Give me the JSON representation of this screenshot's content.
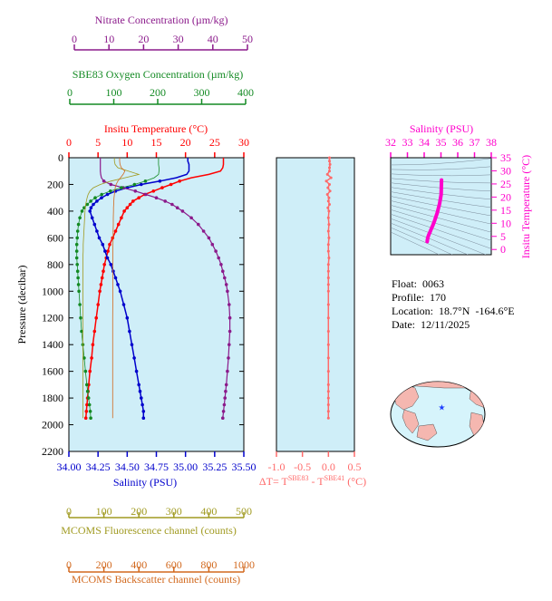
{
  "colors": {
    "nitrate": "#8b1a8b",
    "oxygen": "#138a23",
    "temperature": "#ff0000",
    "salinity": "#0000cc",
    "fluorescence": "#a09a20",
    "backscatter": "#d2691e",
    "delta": "#ff6a6a",
    "ts": "#ff00cc",
    "panel_bg": "#cfeef8"
  },
  "axes": {
    "nitrate_label": "Nitrate Concentration (µm/kg)",
    "nitrate_ticks": [
      "0",
      "10",
      "20",
      "30",
      "40",
      "50"
    ],
    "oxygen_label": "SBE83 Oxygen Concentration (µm/kg)",
    "oxygen_ticks": [
      "0",
      "100",
      "200",
      "300",
      "400"
    ],
    "temperature_label": "Insitu Temperature (°C)",
    "temperature_ticks": [
      "0",
      "5",
      "10",
      "15",
      "20",
      "25",
      "30"
    ],
    "pressure_label": "Pressure (decibar)",
    "pressure_ticks": [
      "0",
      "200",
      "400",
      "600",
      "800",
      "1000",
      "1200",
      "1400",
      "1600",
      "1800",
      "2000",
      "2200"
    ],
    "salinity_label": "Salinity (PSU)",
    "salinity_ticks": [
      "34.00",
      "34.25",
      "34.50",
      "34.75",
      "35.00",
      "35.25",
      "35.50"
    ],
    "fluorescence_label": "MCOMS Fluorescence channel (counts)",
    "fluorescence_ticks": [
      "0",
      "100",
      "200",
      "300",
      "400",
      "500"
    ],
    "backscatter_label": "MCOMS Backscatter channel (counts)",
    "backscatter_ticks": [
      "0",
      "200",
      "400",
      "600",
      "800",
      "1000"
    ],
    "delta_label_pre": "ΔT= T",
    "delta_sup1": "SBE83",
    "delta_mid": " - T",
    "delta_sup2": "SBE41",
    "delta_unit": " (°C)",
    "delta_ticks": [
      "-1.0",
      "-0.5",
      "0.0",
      "0.5"
    ],
    "ts_top_label": "Salinity (PSU)",
    "ts_top_ticks": [
      "32",
      "33",
      "34",
      "35",
      "36",
      "37",
      "38"
    ],
    "ts_right_label": "Insitu Temperature (°C)",
    "ts_right_ticks": [
      "0",
      "5",
      "10",
      "15",
      "20",
      "25",
      "30",
      "35"
    ]
  },
  "info": {
    "float": "Float:  0063",
    "profile": "Profile:  170",
    "location": "Location:  18.7°N  -164.6°E",
    "date": "Date:  12/11/2025"
  },
  "chart_data": {
    "type": "line",
    "ylabel": "Pressure (decibar)",
    "ylim": [
      0,
      2200
    ],
    "pressure": [
      0,
      25,
      50,
      75,
      100,
      125,
      150,
      175,
      200,
      225,
      250,
      275,
      300,
      325,
      350,
      375,
      400,
      450,
      500,
      550,
      600,
      650,
      700,
      750,
      800,
      850,
      900,
      950,
      1000,
      1100,
      1200,
      1300,
      1400,
      1500,
      1600,
      1700,
      1750,
      1800,
      1850,
      1900,
      1950
    ],
    "series": [
      {
        "name": "Insitu Temperature",
        "xlim": [
          0,
          30
        ],
        "values": [
          26.5,
          26.5,
          26.5,
          26.4,
          26.0,
          24.0,
          21.0,
          19.0,
          17.5,
          16.0,
          14.5,
          13.0,
          12.0,
          11.0,
          10.5,
          10.0,
          9.5,
          9.0,
          8.5,
          8.0,
          7.5,
          7.0,
          6.7,
          6.4,
          6.1,
          5.9,
          5.7,
          5.5,
          5.3,
          5.0,
          4.7,
          4.4,
          4.1,
          3.9,
          3.6,
          3.4,
          3.3,
          3.2,
          3.1,
          3.0,
          2.9
        ]
      },
      {
        "name": "Salinity",
        "xlim": [
          34.0,
          35.5
        ],
        "values": [
          35.02,
          35.02,
          35.03,
          35.03,
          35.03,
          35.01,
          34.92,
          34.78,
          34.62,
          34.5,
          34.4,
          34.33,
          34.28,
          34.24,
          34.21,
          34.19,
          34.18,
          34.2,
          34.22,
          34.24,
          34.26,
          34.29,
          34.31,
          34.33,
          34.36,
          34.38,
          34.4,
          34.42,
          34.44,
          34.47,
          34.5,
          34.52,
          34.54,
          34.56,
          34.58,
          34.6,
          34.61,
          34.62,
          34.63,
          34.64,
          34.64
        ]
      },
      {
        "name": "Nitrate",
        "xlim": [
          0,
          50
        ],
        "values": [
          9.0,
          9.0,
          9.0,
          9.0,
          9.0,
          9.1,
          9.3,
          10.0,
          12.0,
          15.5,
          19.0,
          22.0,
          25.0,
          27.5,
          29.5,
          31.0,
          32.5,
          35.0,
          37.0,
          38.5,
          40.0,
          41.0,
          42.0,
          42.8,
          43.5,
          44.0,
          44.5,
          45.0,
          45.3,
          45.8,
          46.0,
          46.0,
          45.8,
          45.6,
          45.3,
          45.0,
          44.8,
          44.6,
          44.4,
          44.2,
          44.0
        ]
      },
      {
        "name": "Oxygen",
        "xlim": [
          0,
          400
        ],
        "values": [
          205,
          205,
          205,
          206,
          206,
          205,
          195,
          175,
          150,
          120,
          95,
          75,
          60,
          50,
          42,
          35,
          30,
          25,
          22,
          20,
          19,
          18,
          18,
          18,
          19,
          20,
          21,
          22,
          23,
          25,
          27,
          29,
          32,
          35,
          38,
          41,
          43,
          45,
          47,
          49,
          50
        ]
      },
      {
        "name": "Fluorescence",
        "xlim": [
          0,
          500
        ],
        "values": [
          130,
          130,
          132,
          140,
          170,
          200,
          160,
          120,
          90,
          70,
          60,
          55,
          52,
          50,
          48,
          47,
          46,
          45,
          44,
          43,
          42,
          41,
          41,
          40,
          40,
          40,
          40,
          40,
          40,
          40,
          40,
          40,
          40,
          40,
          40,
          40,
          40,
          40,
          40,
          40,
          40
        ]
      },
      {
        "name": "Backscatter",
        "xlim": [
          0,
          1000
        ],
        "values": [
          290,
          290,
          292,
          300,
          320,
          310,
          295,
          280,
          270,
          265,
          262,
          260,
          258,
          257,
          256,
          255,
          255,
          254,
          254,
          253,
          253,
          252,
          252,
          252,
          252,
          252,
          251,
          251,
          251,
          251,
          250,
          250,
          250,
          250,
          250,
          250,
          250,
          250,
          250,
          250,
          250
        ]
      },
      {
        "name": "Delta T",
        "xlim": [
          -1.0,
          0.5
        ],
        "values": [
          0.02,
          0.02,
          0.03,
          0.02,
          0.02,
          -0.02,
          0.05,
          -0.04,
          0.02,
          -0.01,
          0.03,
          -0.02,
          0.01,
          0.0,
          0.02,
          -0.01,
          0.01,
          0.0,
          0.01,
          0.0,
          0.01,
          0.0,
          0.0,
          0.01,
          0.0,
          0.0,
          0.0,
          0.0,
          0.0,
          0.0,
          0.0,
          0.0,
          0.0,
          0.0,
          0.0,
          0.0,
          0.0,
          0.0,
          0.0,
          0.0,
          0.0
        ]
      }
    ],
    "ts_diagram": {
      "xlim": [
        32,
        38
      ],
      "ylim": [
        -2,
        35
      ],
      "salinity": [
        34.18,
        34.2,
        34.24,
        34.28,
        34.33,
        34.4,
        34.5,
        34.62,
        34.78,
        34.92,
        35.01,
        35.02,
        35.03,
        35.03
      ],
      "temperature": [
        3.0,
        4.1,
        5.0,
        5.7,
        6.4,
        7.5,
        9.0,
        11.0,
        14.0,
        17.5,
        21.0,
        24.0,
        26.0,
        26.5
      ]
    },
    "map_marker": {
      "lat": 18.7,
      "lon": -164.6
    }
  }
}
